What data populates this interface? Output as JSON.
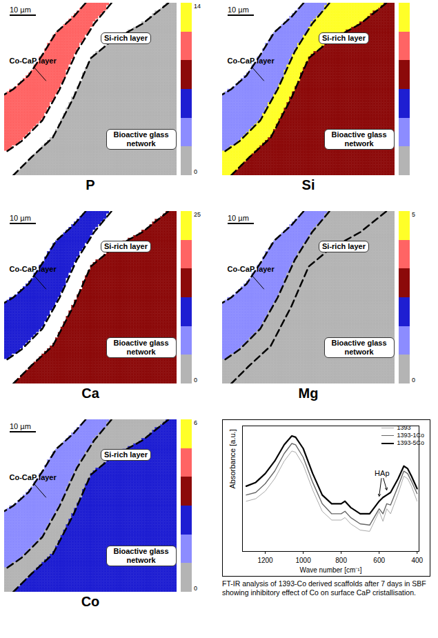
{
  "figure": {
    "colorbar_colors": [
      "#b4b4b4",
      "#8c8cff",
      "#1e1ed2",
      "#8c0a0a",
      "#ff6464",
      "#ffff28"
    ],
    "regions": [
      "Co-CaP layer",
      "Si-rich layer",
      "Bioactive glass network"
    ],
    "scale_bar": "10 µm",
    "maps": [
      {
        "element": "P",
        "colorbar": {
          "range": [
            0,
            14
          ],
          "ticks": [
            0,
            14
          ]
        },
        "values": [
          10,
          0,
          1
        ]
      },
      {
        "element": "Si",
        "colorbar": {
          "range": [
            0,
            20
          ],
          "ticks": []
        },
        "values": [
          4,
          18,
          11
        ]
      },
      {
        "element": "Ca",
        "colorbar": {
          "range": [
            0,
            25
          ],
          "ticks": [
            0,
            25
          ]
        },
        "values": [
          12,
          0,
          16
        ]
      },
      {
        "element": "Mg",
        "colorbar": {
          "range": [
            0,
            5
          ],
          "ticks": [
            0,
            5
          ]
        },
        "values": [
          1,
          0.5,
          0.8
        ]
      },
      {
        "element": "Co",
        "colorbar": {
          "range": [
            0,
            6
          ],
          "ticks": [
            0,
            6
          ]
        },
        "values": [
          1.2,
          0.6,
          2
        ]
      }
    ]
  },
  "chart_data": {
    "type": "line",
    "x_label": "Wave number [cm⁻¹]",
    "y_label": "Absorbance [a.u.]",
    "caption": "FT-IR analysis of 1393-Co derived scaffolds after 7 days in SBF showing inhibitory effect of Co on surface CaP cristallisation.",
    "x": [
      1300,
      1250,
      1200,
      1150,
      1100,
      1060,
      1040,
      1000,
      950,
      900,
      850,
      800,
      780,
      750,
      700,
      650,
      600,
      580,
      560,
      540,
      500,
      470,
      450,
      430,
      400
    ],
    "series": [
      {
        "name": "1393",
        "color": "#aaaaaa",
        "values": [
          0.4,
          0.42,
          0.48,
          0.58,
          0.72,
          0.8,
          0.79,
          0.69,
          0.49,
          0.32,
          0.25,
          0.25,
          0.27,
          0.22,
          0.17,
          0.16,
          0.32,
          0.24,
          0.34,
          0.3,
          0.46,
          0.6,
          0.58,
          0.52,
          0.4
        ]
      },
      {
        "name": "1393-1Co",
        "color": "#666666",
        "values": [
          0.45,
          0.47,
          0.54,
          0.64,
          0.78,
          0.86,
          0.85,
          0.75,
          0.55,
          0.38,
          0.3,
          0.3,
          0.32,
          0.27,
          0.22,
          0.21,
          0.34,
          0.3,
          0.38,
          0.37,
          0.52,
          0.64,
          0.62,
          0.56,
          0.46
        ]
      },
      {
        "name": "1393-5Co",
        "color": "#000000",
        "values": [
          0.52,
          0.55,
          0.62,
          0.72,
          0.85,
          0.92,
          0.91,
          0.82,
          0.62,
          0.45,
          0.38,
          0.38,
          0.4,
          0.35,
          0.3,
          0.3,
          0.4,
          0.43,
          0.45,
          0.47,
          0.58,
          0.68,
          0.66,
          0.6,
          0.5
        ]
      }
    ],
    "xlim": [
      1320,
      390
    ],
    "xticks": [
      1200,
      1000,
      800,
      600,
      400
    ],
    "ylim": [
      0,
      1
    ],
    "tick_labels": "x",
    "grid": false,
    "legend": "top-right",
    "annotations": [
      {
        "text": "HAp",
        "x": 585,
        "y": 0.62,
        "arrows_to": [
          [
            600,
            0.44
          ],
          [
            560,
            0.49
          ]
        ]
      }
    ]
  }
}
